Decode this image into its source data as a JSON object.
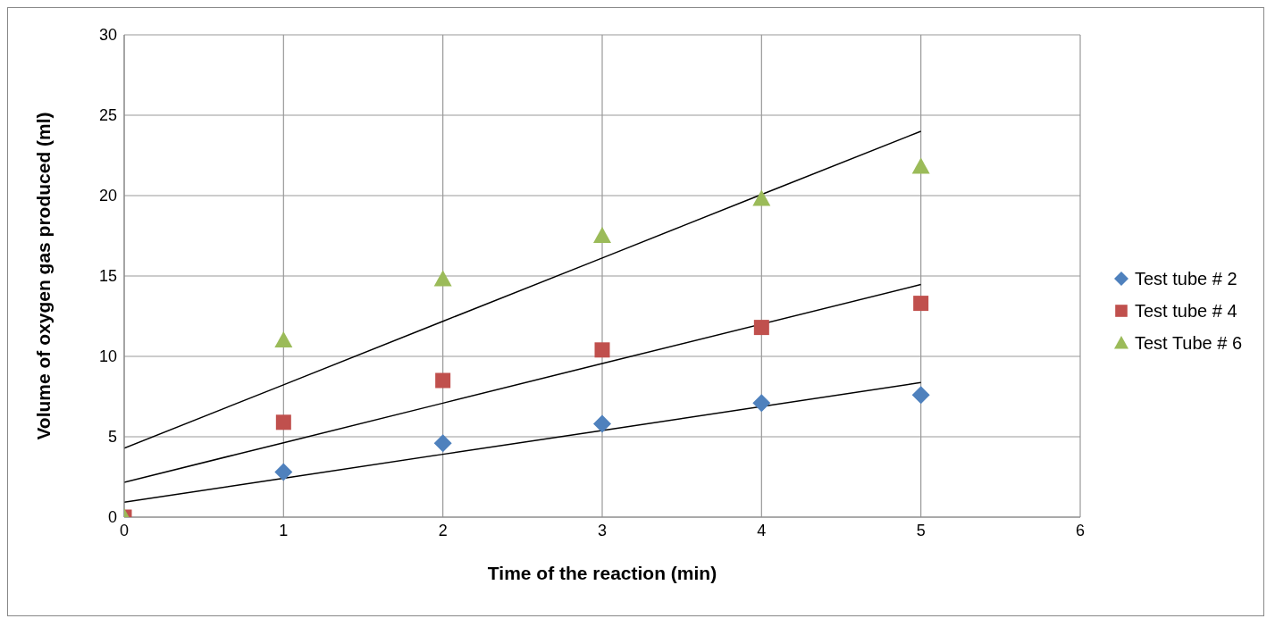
{
  "chart_data": {
    "type": "scatter",
    "xlabel": "Time of the reaction (min)",
    "ylabel": "Volume of oxygen gas produced (ml)",
    "x": [
      0,
      1,
      2,
      3,
      4,
      5
    ],
    "series": [
      {
        "name": "Test tube # 2",
        "color": "#4f81bd",
        "marker": "diamond",
        "values": [
          null,
          2.8,
          4.6,
          5.8,
          7.1,
          7.6
        ]
      },
      {
        "name": "Test tube # 4",
        "color": "#c0504d",
        "marker": "square",
        "values": [
          0,
          5.9,
          8.5,
          10.4,
          11.8,
          13.3
        ]
      },
      {
        "name": "Test Tube # 6",
        "color": "#9bbb59",
        "marker": "triangle",
        "values": [
          0,
          11.0,
          14.8,
          17.5,
          19.8,
          21.8
        ]
      },
      {
        "type": "line",
        "color": "#000000",
        "marker": "none",
        "values": [
          0.93,
          2.42,
          3.91,
          5.39,
          null,
          8.37
        ]
      },
      {
        "type": "line",
        "color": "#000000",
        "marker": "none",
        "values": [
          2.17,
          4.63,
          7.09,
          9.55,
          null,
          14.47
        ]
      },
      {
        "type": "line",
        "color": "#000000",
        "marker": "none",
        "values": [
          4.29,
          8.23,
          12.18,
          16.12,
          20.07,
          24.0
        ]
      }
    ],
    "xlim": [
      0,
      6
    ],
    "xticks": [
      0,
      1,
      2,
      3,
      4,
      5,
      6
    ],
    "ylim": [
      0,
      30
    ],
    "yticks": [
      0,
      5,
      10,
      15,
      20,
      25,
      30
    ],
    "grid": true,
    "legend": "right"
  }
}
